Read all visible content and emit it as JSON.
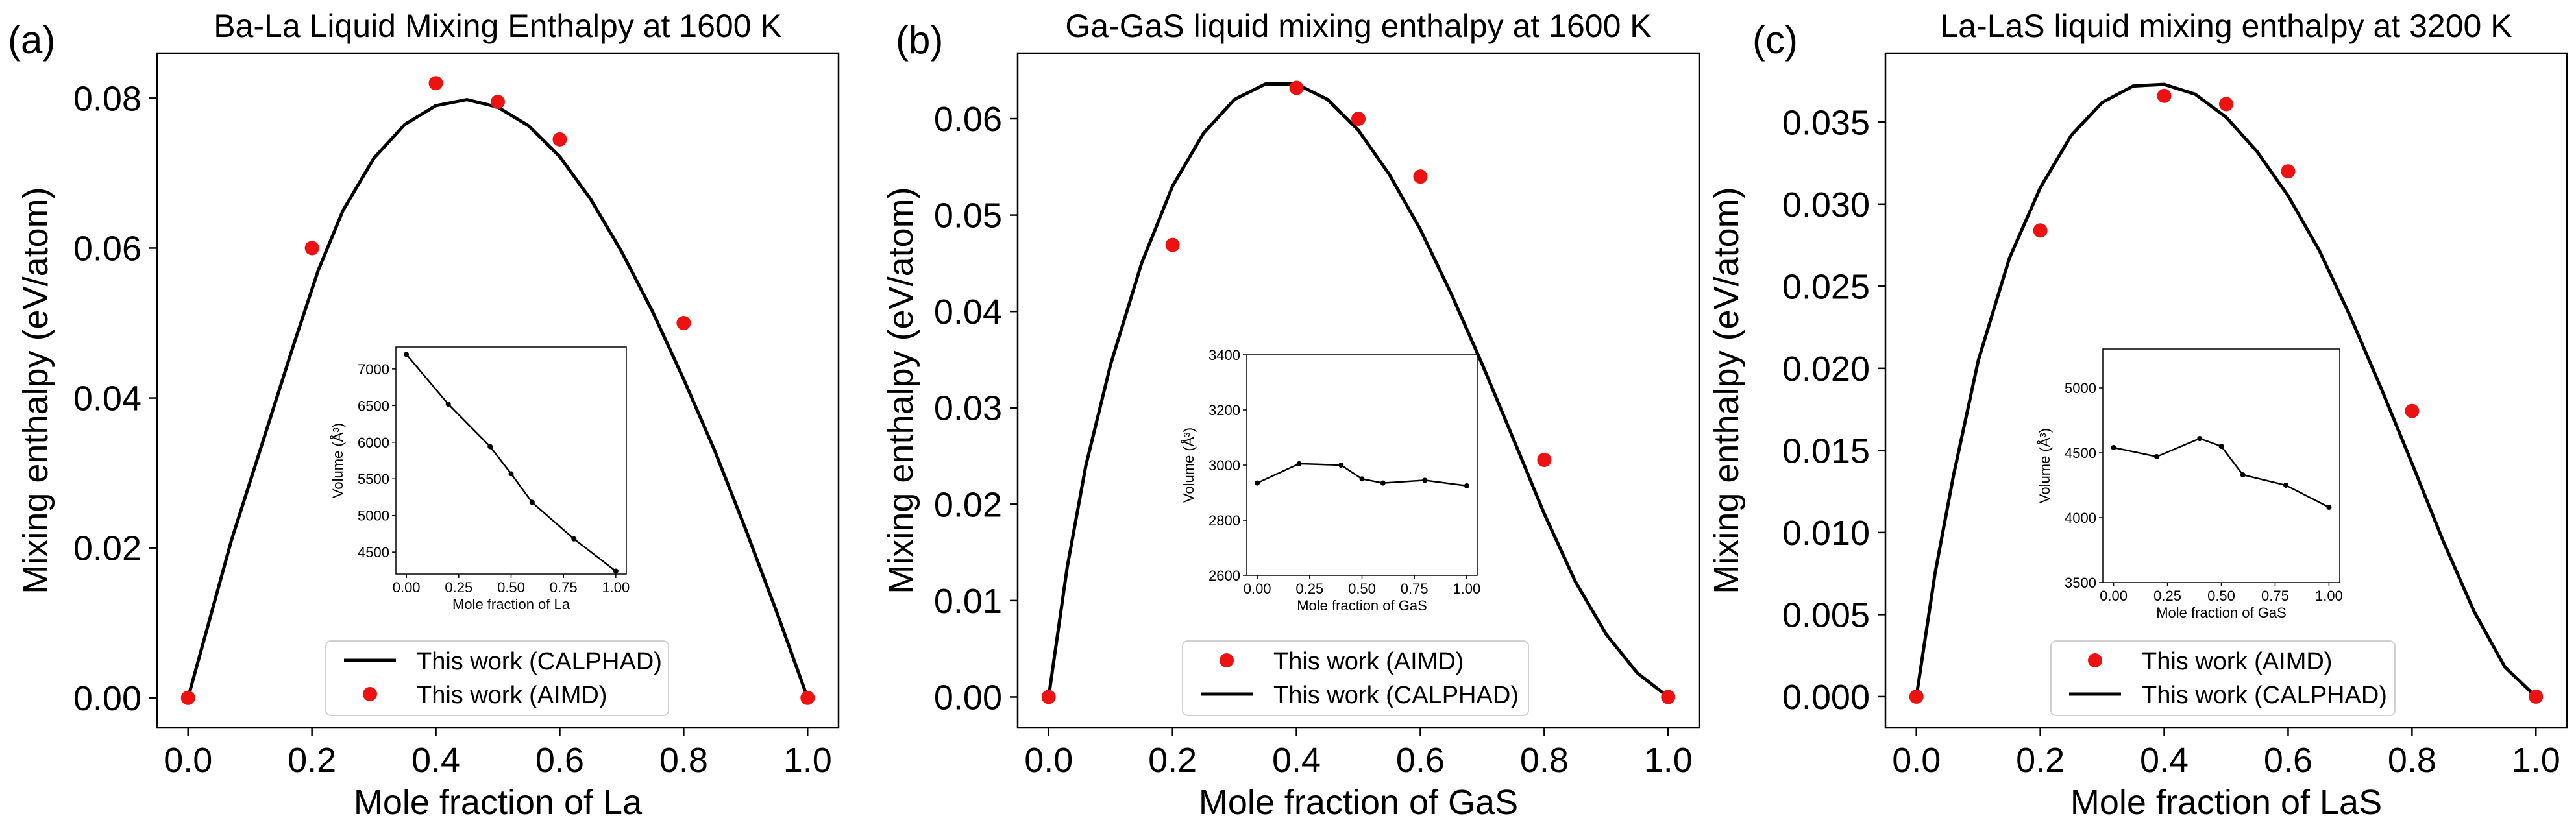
{
  "chart_data": [
    {
      "type": "line",
      "panel_label": "(a)",
      "title": "Ba-La Liquid Mixing Enthalpy at 1600 K",
      "xlabel": "Mole fraction of La",
      "ylabel": "Mixing enthalpy (eV/atom)",
      "xlim": [
        -0.05,
        1.05
      ],
      "ylim": [
        -0.004,
        0.086
      ],
      "xticks": [
        0.0,
        0.2,
        0.4,
        0.6,
        0.8,
        1.0
      ],
      "xtick_labels": [
        "0.0",
        "0.2",
        "0.4",
        "0.6",
        "0.8",
        "1.0"
      ],
      "yticks": [
        0.0,
        0.02,
        0.04,
        0.06,
        0.08
      ],
      "ytick_labels": [
        "0.00",
        "0.02",
        "0.04",
        "0.06",
        "0.08"
      ],
      "legend_order": [
        "line",
        "points"
      ],
      "series": [
        {
          "name": "This work (CALPHAD)",
          "kind": "line",
          "color": "#000000",
          "x": [
            0,
            0.03,
            0.07,
            0.12,
            0.17,
            0.21,
            0.25,
            0.3,
            0.35,
            0.4,
            0.45,
            0.5,
            0.55,
            0.6,
            0.65,
            0.7,
            0.75,
            0.8,
            0.85,
            0.9,
            0.95,
            1.0
          ],
          "y": [
            0,
            0.009,
            0.021,
            0.034,
            0.047,
            0.057,
            0.065,
            0.072,
            0.0765,
            0.079,
            0.0798,
            0.0788,
            0.0763,
            0.0722,
            0.0665,
            0.0595,
            0.0515,
            0.0425,
            0.033,
            0.0225,
            0.0115,
            0
          ]
        },
        {
          "name": "This work (AIMD)",
          "kind": "scatter",
          "color": "#ee1111",
          "x": [
            0.0,
            0.2,
            0.4,
            0.5,
            0.6,
            0.8,
            1.0
          ],
          "y": [
            0.0,
            0.06,
            0.082,
            0.0795,
            0.0745,
            0.05,
            0.0
          ]
        }
      ],
      "inset": {
        "xlabel": "Mole fraction of La",
        "ylabel": "Volume (Å³)",
        "xlim": [
          -0.05,
          1.05
        ],
        "ylim": [
          4200,
          7300
        ],
        "xticks": [
          0.0,
          0.25,
          0.5,
          0.75,
          1.0
        ],
        "xtick_labels": [
          "0.00",
          "0.25",
          "0.50",
          "0.75",
          "1.00"
        ],
        "yticks": [
          4500,
          5000,
          5500,
          6000,
          6500,
          7000
        ],
        "ytick_labels": [
          "4500",
          "5000",
          "5500",
          "6000",
          "6500",
          "7000"
        ],
        "x": [
          0.0,
          0.2,
          0.4,
          0.5,
          0.6,
          0.8,
          1.0
        ],
        "y": [
          7200,
          6520,
          5940,
          5570,
          5180,
          4680,
          4240
        ]
      }
    },
    {
      "type": "line",
      "panel_label": "(b)",
      "title": "Ga-GaS liquid mixing enthalpy at 1600 K",
      "xlabel": "Mole fraction of GaS",
      "ylabel": "Mixing enthalpy (eV/atom)",
      "xlim": [
        -0.05,
        1.05
      ],
      "ylim": [
        -0.0032,
        0.0668
      ],
      "xticks": [
        0.0,
        0.2,
        0.4,
        0.6,
        0.8,
        1.0
      ],
      "xtick_labels": [
        "0.0",
        "0.2",
        "0.4",
        "0.6",
        "0.8",
        "1.0"
      ],
      "yticks": [
        0.0,
        0.01,
        0.02,
        0.03,
        0.04,
        0.05,
        0.06
      ],
      "ytick_labels": [
        "0.00",
        "0.01",
        "0.02",
        "0.03",
        "0.04",
        "0.05",
        "0.06"
      ],
      "legend_order": [
        "points",
        "line"
      ],
      "series": [
        {
          "name": "This work (CALPHAD)",
          "kind": "line",
          "color": "#000000",
          "x": [
            0,
            0.03,
            0.06,
            0.1,
            0.15,
            0.2,
            0.25,
            0.3,
            0.35,
            0.4,
            0.45,
            0.5,
            0.55,
            0.6,
            0.65,
            0.7,
            0.75,
            0.8,
            0.85,
            0.9,
            0.95,
            1.0
          ],
          "y": [
            0,
            0.0135,
            0.024,
            0.0345,
            0.045,
            0.053,
            0.0585,
            0.062,
            0.0636,
            0.0636,
            0.062,
            0.0588,
            0.0542,
            0.0485,
            0.0418,
            0.0345,
            0.0268,
            0.019,
            0.012,
            0.0065,
            0.0025,
            0
          ]
        },
        {
          "name": "This work (AIMD)",
          "kind": "scatter",
          "color": "#ee1111",
          "x": [
            0.0,
            0.2,
            0.4,
            0.5,
            0.6,
            0.8,
            1.0
          ],
          "y": [
            0.0,
            0.0469,
            0.0632,
            0.06,
            0.054,
            0.0246,
            0.0
          ]
        }
      ],
      "inset": {
        "xlabel": "Mole fraction of GaS",
        "ylabel": "Volume (Å³)",
        "xlim": [
          -0.05,
          1.05
        ],
        "ylim": [
          2600,
          3400
        ],
        "xticks": [
          0.0,
          0.25,
          0.5,
          0.75,
          1.0
        ],
        "xtick_labels": [
          "0.00",
          "0.25",
          "0.50",
          "0.75",
          "1.00"
        ],
        "yticks": [
          2600,
          2800,
          3000,
          3200,
          3400
        ],
        "ytick_labels": [
          "2600",
          "2800",
          "3000",
          "3200",
          "3400"
        ],
        "x": [
          0.0,
          0.2,
          0.4,
          0.5,
          0.6,
          0.8,
          1.0
        ],
        "y": [
          2935,
          3005,
          3000,
          2950,
          2935,
          2945,
          2925
        ]
      }
    },
    {
      "type": "line",
      "panel_label": "(c)",
      "title": "La-LaS liquid mixing enthalpy at 3200 K",
      "xlabel": "Mole fraction of LaS",
      "ylabel": "Mixing enthalpy (eV/atom)",
      "xlim": [
        -0.05,
        1.05
      ],
      "ylim": [
        -0.0019,
        0.0392
      ],
      "xticks": [
        0.0,
        0.2,
        0.4,
        0.6,
        0.8,
        1.0
      ],
      "xtick_labels": [
        "0.0",
        "0.2",
        "0.4",
        "0.6",
        "0.8",
        "1.0"
      ],
      "yticks": [
        0.0,
        0.005,
        0.01,
        0.015,
        0.02,
        0.025,
        0.03,
        0.035
      ],
      "ytick_labels": [
        "0.000",
        "0.005",
        "0.010",
        "0.015",
        "0.020",
        "0.025",
        "0.030",
        "0.035"
      ],
      "legend_order": [
        "points",
        "line"
      ],
      "series": [
        {
          "name": "This work (CALPHAD)",
          "kind": "line",
          "color": "#000000",
          "x": [
            0,
            0.03,
            0.06,
            0.1,
            0.15,
            0.2,
            0.25,
            0.3,
            0.35,
            0.4,
            0.45,
            0.5,
            0.55,
            0.6,
            0.65,
            0.7,
            0.75,
            0.8,
            0.85,
            0.9,
            0.95,
            1.0
          ],
          "y": [
            0,
            0.0075,
            0.0135,
            0.0205,
            0.0267,
            0.031,
            0.0342,
            0.0362,
            0.0372,
            0.0373,
            0.0367,
            0.0353,
            0.0332,
            0.0305,
            0.0272,
            0.0232,
            0.0188,
            0.0142,
            0.0095,
            0.0052,
            0.0018,
            0
          ]
        },
        {
          "name": "This work (AIMD)",
          "kind": "scatter",
          "color": "#ee1111",
          "x": [
            0.0,
            0.2,
            0.4,
            0.5,
            0.6,
            0.8,
            1.0
          ],
          "y": [
            0.0,
            0.0284,
            0.0366,
            0.0361,
            0.032,
            0.0174,
            0.0
          ]
        }
      ],
      "inset": {
        "xlabel": "Mole fraction of GaS",
        "ylabel": "Volume (Å³)",
        "xlim": [
          -0.05,
          1.05
        ],
        "ylim": [
          3500,
          5300
        ],
        "xticks": [
          0.0,
          0.25,
          0.5,
          0.75,
          1.0
        ],
        "xtick_labels": [
          "0.00",
          "0.25",
          "0.50",
          "0.75",
          "1.00"
        ],
        "yticks": [
          3500,
          4000,
          4500,
          5000
        ],
        "ytick_labels": [
          "3500",
          "4000",
          "4500",
          "5000"
        ],
        "x": [
          0.0,
          0.2,
          0.4,
          0.5,
          0.6,
          0.8,
          1.0
        ],
        "y": [
          4540,
          4470,
          4610,
          4550,
          4330,
          4250,
          4080
        ]
      }
    }
  ]
}
